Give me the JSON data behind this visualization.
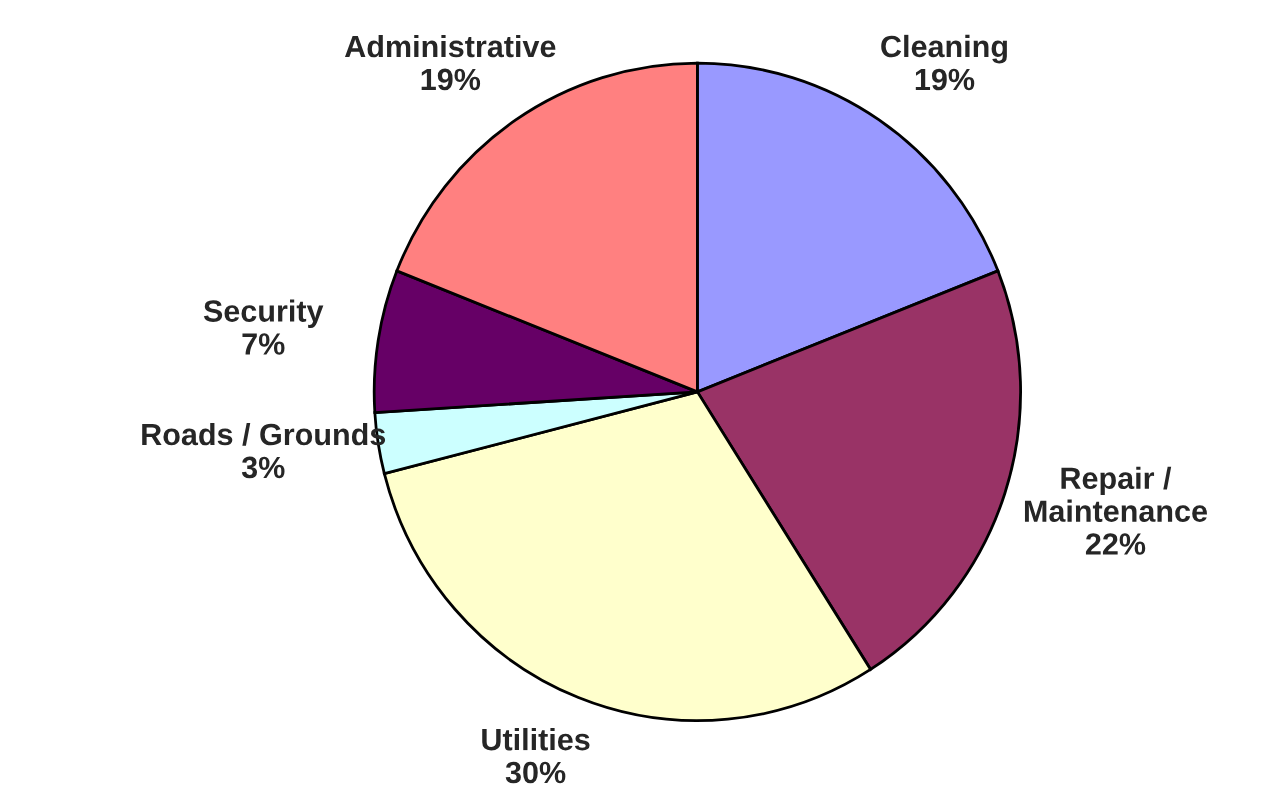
{
  "chart_data": {
    "type": "pie",
    "categories": [
      "Cleaning",
      "Repair /\nMaintenance",
      "Utilities",
      "Roads / Grounds",
      "Security",
      "Administrative"
    ],
    "values": [
      19,
      22,
      30,
      3,
      7,
      19
    ],
    "value_labels": [
      "19%",
      "22%",
      "30%",
      "3%",
      "7%",
      "19%"
    ],
    "colors": [
      "#9999ff",
      "#993366",
      "#ffffcc",
      "#ccffff",
      "#660066",
      "#ff8080"
    ],
    "legend": false
  }
}
